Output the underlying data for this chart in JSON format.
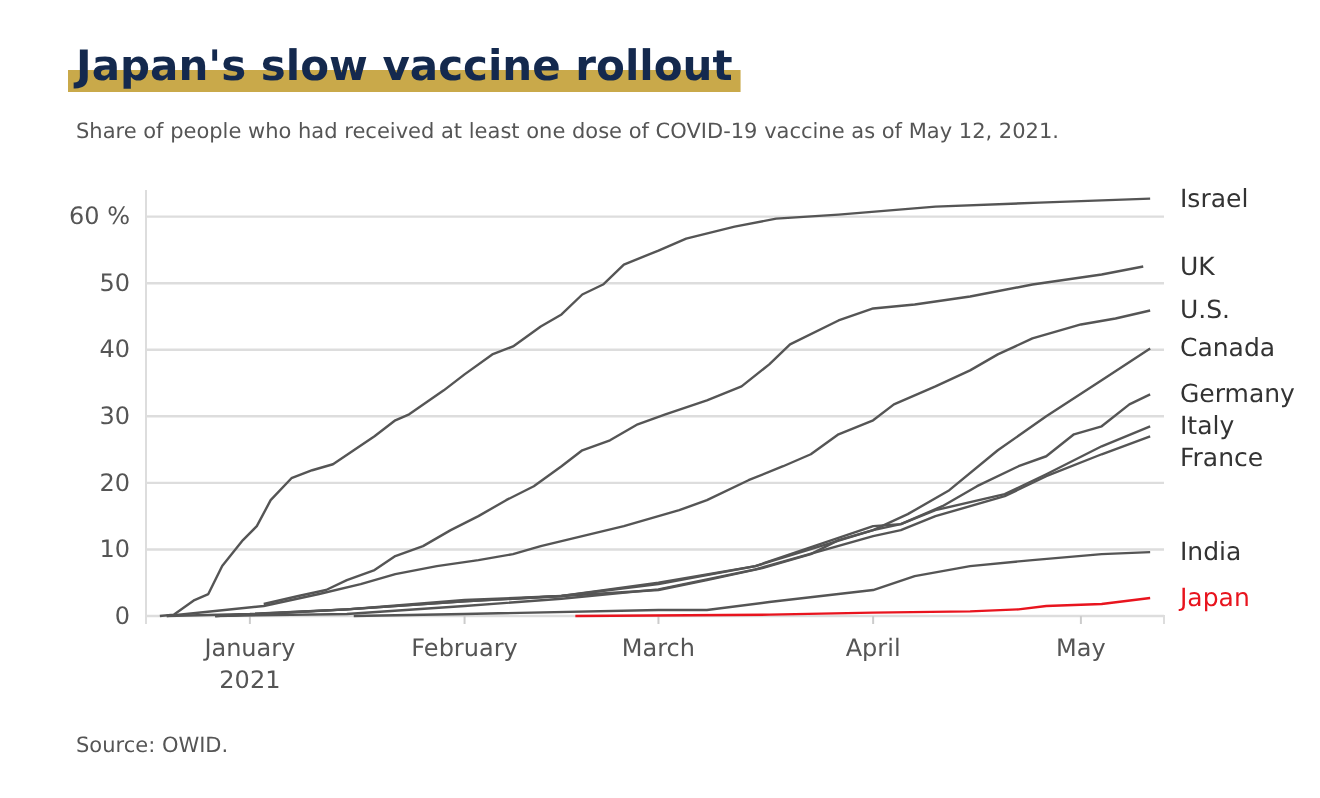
{
  "chart_data": {
    "type": "line",
    "title": "Japan's slow vaccine rollout",
    "subtitle": "Share of people who had received at least one dose of COVID-19 vaccine as of May 12, 2021.",
    "annotations": [
      "Source: OWID."
    ],
    "xlim": [
      "2020-12-17",
      "2021-05-13"
    ],
    "xticks": [
      {
        "value": "2021-01-01",
        "label": "January\n2021"
      },
      {
        "value": "2021-02-01",
        "label": "February"
      },
      {
        "value": "2021-03-01",
        "label": "March"
      },
      {
        "value": "2021-04-01",
        "label": "April"
      },
      {
        "value": "2021-05-01",
        "label": "May"
      }
    ],
    "ylim": [
      0,
      64
    ],
    "yticks": [
      0,
      10,
      20,
      30,
      40,
      50,
      {
        "value": 60,
        "label": "60 %"
      }
    ],
    "grid": "y",
    "legend": false,
    "line_style": "solid",
    "marker": "none",
    "series": [
      {
        "name": "Israel",
        "color": "#555555",
        "x": [
          "2020-12-19",
          "2020-12-21",
          "2020-12-24",
          "2020-12-26",
          "2020-12-28",
          "2020-12-31",
          "2021-01-02",
          "2021-01-04",
          "2021-01-07",
          "2021-01-10",
          "2021-01-13",
          "2021-01-16",
          "2021-01-19",
          "2021-01-22",
          "2021-01-24",
          "2021-01-29",
          "2021-02-01",
          "2021-02-05",
          "2021-02-08",
          "2021-02-12",
          "2021-02-15",
          "2021-02-18",
          "2021-02-21",
          "2021-02-24",
          "2021-03-01",
          "2021-03-05",
          "2021-03-12",
          "2021-03-18",
          "2021-03-27",
          "2021-04-10",
          "2021-04-25",
          "2021-05-11"
        ],
        "values": [
          0,
          0.2,
          2.4,
          3.3,
          7.5,
          11.4,
          13.5,
          17.4,
          20.7,
          21.9,
          22.8,
          24.9,
          27,
          29.4,
          30.3,
          33.9,
          36.3,
          39.3,
          40.5,
          43.5,
          45.3,
          48.3,
          49.8,
          52.8,
          54.9,
          56.7,
          58.5,
          59.7,
          60.3,
          61.5,
          62.1,
          62.7
        ]
      },
      {
        "name": "UK",
        "color": "#555555",
        "x": [
          "2021-01-03",
          "2021-01-08",
          "2021-01-12",
          "2021-01-15",
          "2021-01-19",
          "2021-01-22",
          "2021-01-26",
          "2021-01-30",
          "2021-02-03",
          "2021-02-07",
          "2021-02-11",
          "2021-02-15",
          "2021-02-18",
          "2021-02-22",
          "2021-02-26",
          "2021-03-02",
          "2021-03-08",
          "2021-03-13",
          "2021-03-17",
          "2021-03-20",
          "2021-03-27",
          "2021-04-01",
          "2021-04-07",
          "2021-04-15",
          "2021-04-24",
          "2021-05-04",
          "2021-05-10"
        ],
        "values": [
          1.8,
          3,
          3.9,
          5.4,
          6.9,
          9,
          10.5,
          12.9,
          15,
          17.4,
          19.5,
          22.5,
          24.9,
          26.4,
          28.8,
          30.3,
          32.4,
          34.5,
          37.8,
          40.8,
          44.4,
          46.2,
          46.8,
          48,
          49.8,
          51.3,
          52.5
        ]
      },
      {
        "name": "U.S.",
        "color": "#555555",
        "x": [
          "2020-12-20",
          "2021-01-03",
          "2021-01-11",
          "2021-01-17",
          "2021-01-22",
          "2021-01-28",
          "2021-02-03",
          "2021-02-08",
          "2021-02-12",
          "2021-02-18",
          "2021-02-24",
          "2021-03-01",
          "2021-03-04",
          "2021-03-08",
          "2021-03-14",
          "2021-03-19",
          "2021-03-23",
          "2021-03-27",
          "2021-04-01",
          "2021-04-04",
          "2021-04-10",
          "2021-04-15",
          "2021-04-19",
          "2021-04-24",
          "2021-05-01",
          "2021-05-06",
          "2021-05-11"
        ],
        "values": [
          0,
          1.5,
          3.3,
          4.8,
          6.3,
          7.5,
          8.4,
          9.3,
          10.5,
          12,
          13.5,
          15,
          15.9,
          17.4,
          20.4,
          22.5,
          24.3,
          27.3,
          29.4,
          31.8,
          34.5,
          36.9,
          39.3,
          41.7,
          43.8,
          44.7,
          45.9
        ]
      },
      {
        "name": "Canada",
        "color": "#555555",
        "x": [
          "2020-12-20",
          "2021-01-01",
          "2021-01-15",
          "2021-02-01",
          "2021-02-15",
          "2021-03-01",
          "2021-03-08",
          "2021-03-16",
          "2021-03-23",
          "2021-03-27",
          "2021-04-01",
          "2021-04-06",
          "2021-04-12",
          "2021-04-19",
          "2021-04-26",
          "2021-05-04",
          "2021-05-11"
        ],
        "values": [
          0,
          0.3,
          1,
          2.4,
          3,
          3.9,
          5.4,
          7.2,
          9.3,
          11.4,
          12.9,
          15.3,
          18.9,
          24.9,
          30,
          35.4,
          40.2
        ]
      },
      {
        "name": "Germany",
        "color": "#555555",
        "x": [
          "2020-12-27",
          "2021-01-01",
          "2021-01-15",
          "2021-02-01",
          "2021-02-15",
          "2021-03-01",
          "2021-03-15",
          "2021-04-01",
          "2021-04-05",
          "2021-04-11",
          "2021-04-16",
          "2021-04-22",
          "2021-04-26",
          "2021-04-30",
          "2021-05-04",
          "2021-05-08",
          "2021-05-11"
        ],
        "values": [
          0,
          0.2,
          1,
          2.2,
          3,
          4.8,
          7.5,
          13.5,
          13.8,
          16.5,
          19.5,
          22.5,
          24,
          27.3,
          28.5,
          31.8,
          33.3
        ]
      },
      {
        "name": "Italy",
        "color": "#555555",
        "x": [
          "2020-12-27",
          "2021-01-15",
          "2021-02-01",
          "2021-02-15",
          "2021-03-01",
          "2021-03-15",
          "2021-04-01",
          "2021-04-05",
          "2021-04-10",
          "2021-04-20",
          "2021-04-26",
          "2021-05-04",
          "2021-05-11"
        ],
        "values": [
          0,
          1,
          2.2,
          3,
          5,
          7.5,
          12.9,
          13.8,
          15.9,
          18.3,
          21.3,
          25.5,
          28.5
        ]
      },
      {
        "name": "France",
        "color": "#555555",
        "x": [
          "2020-12-27",
          "2021-01-15",
          "2021-02-01",
          "2021-02-15",
          "2021-03-01",
          "2021-03-15",
          "2021-04-01",
          "2021-04-05",
          "2021-04-10",
          "2021-04-20",
          "2021-04-26",
          "2021-05-04",
          "2021-05-11"
        ],
        "values": [
          0,
          0.3,
          1.5,
          2.6,
          4,
          7,
          12,
          12.9,
          15,
          18,
          21,
          24.3,
          27
        ]
      },
      {
        "name": "India",
        "color": "#555555",
        "x": [
          "2021-01-16",
          "2021-02-01",
          "2021-03-01",
          "2021-03-08",
          "2021-03-17",
          "2021-03-27",
          "2021-04-01",
          "2021-04-07",
          "2021-04-15",
          "2021-04-24",
          "2021-05-04",
          "2021-05-11"
        ],
        "values": [
          0,
          0.3,
          0.9,
          0.9,
          2.1,
          3.3,
          3.9,
          6,
          7.5,
          8.4,
          9.3,
          9.6
        ]
      },
      {
        "name": "Japan",
        "color": "#e8141e",
        "x": [
          "2021-02-17",
          "2021-03-17",
          "2021-04-01",
          "2021-04-15",
          "2021-04-22",
          "2021-04-26",
          "2021-05-04",
          "2021-05-11"
        ],
        "values": [
          0,
          0.2,
          0.5,
          0.7,
          1,
          1.5,
          1.8,
          2.7
        ]
      }
    ]
  }
}
